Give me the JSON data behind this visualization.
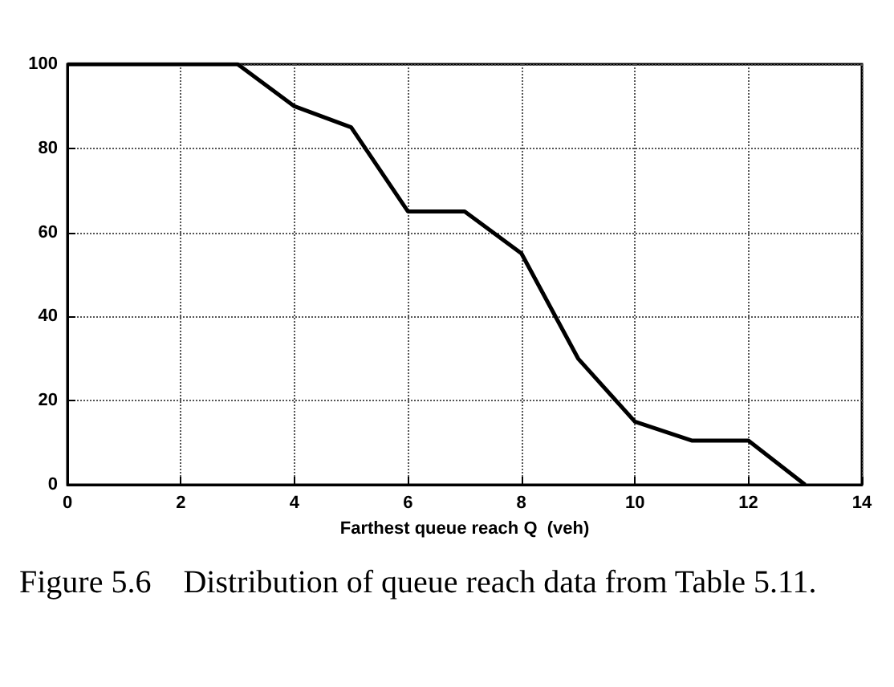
{
  "chart_data": {
    "type": "line",
    "xlabel": "Farthest queue reach Q  (veh)",
    "x": [
      0,
      3,
      4,
      5,
      6,
      7,
      8,
      9,
      10,
      11,
      12,
      13
    ],
    "series": [
      {
        "color": "#000000",
        "values": [
          100,
          100,
          90,
          85,
          65,
          65,
          55,
          30,
          15,
          10.5,
          10.5,
          0
        ]
      }
    ],
    "xlim": [
      0,
      14
    ],
    "xticks": [
      0,
      2,
      4,
      6,
      8,
      10,
      12,
      14
    ],
    "ylim": [
      0,
      100
    ],
    "yticks": [
      0,
      20,
      40,
      60,
      80,
      100
    ],
    "grid": true,
    "marker": "none",
    "line_style": "solid",
    "annotations": [
      "Figure 5.6    Distribution of queue reach data from Table 5.11."
    ]
  }
}
